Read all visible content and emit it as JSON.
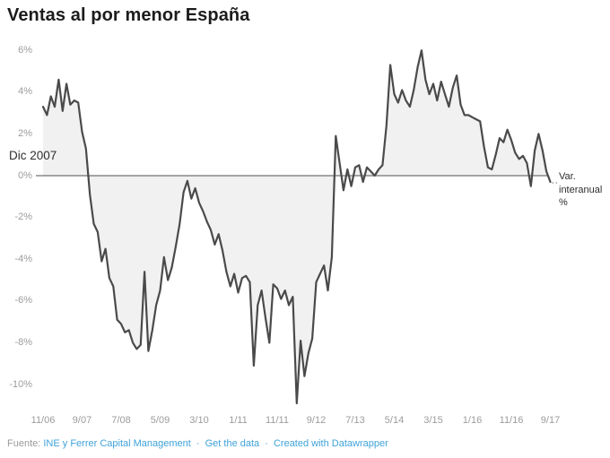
{
  "title": "Ventas al por menor España",
  "annotations": {
    "dic_2007": "Dic 2007",
    "series_label_lines": [
      "Var.",
      "interanual",
      "%"
    ]
  },
  "footer": {
    "prefix": "Fuente:",
    "separator": "·",
    "links": [
      "INE y Ferrer Capital Management",
      "Get the data",
      "Created with Datawrapper"
    ]
  },
  "colors": {
    "line": "#4a4a4a",
    "fill": "#f1f1f1",
    "zero_line": "#4f4f4f",
    "axis_text": "#9c9c9c",
    "annotation_text": "#2e2e2e",
    "title_text": "#1c1c1c",
    "link_blue": "#3ea2d9"
  },
  "chart_data": {
    "type": "area",
    "title": "Ventas al por menor España",
    "series_name": "Var. interanual %",
    "unit": "%",
    "frequency": "monthly",
    "start_month": "2006-11",
    "end_month": "2017-09",
    "values": [
      3.3,
      2.9,
      3.8,
      3.3,
      4.6,
      3.1,
      4.4,
      3.4,
      3.6,
      3.5,
      2.1,
      1.3,
      -0.9,
      -2.3,
      -2.7,
      -4.1,
      -3.5,
      -4.9,
      -5.3,
      -6.9,
      -7.1,
      -7.5,
      -7.4,
      -8.0,
      -8.3,
      -8.1,
      -4.6,
      -8.4,
      -7.4,
      -6.2,
      -5.5,
      -3.9,
      -5.0,
      -4.4,
      -3.4,
      -2.3,
      -0.8,
      -0.25,
      -1.1,
      -0.6,
      -1.3,
      -1.7,
      -2.2,
      -2.6,
      -3.3,
      -2.8,
      -3.6,
      -4.6,
      -5.3,
      -4.7,
      -5.6,
      -4.9,
      -4.8,
      -5.1,
      -9.1,
      -6.2,
      -5.5,
      -6.8,
      -8.0,
      -5.2,
      -5.4,
      -5.9,
      -5.5,
      -6.2,
      -5.8,
      -10.9,
      -7.9,
      -9.6,
      -8.5,
      -7.8,
      -5.1,
      -4.7,
      -4.3,
      -5.5,
      -3.9,
      1.9,
      0.6,
      -0.7,
      0.3,
      -0.5,
      0.4,
      0.5,
      -0.3,
      0.4,
      0.2,
      0.0,
      0.3,
      0.5,
      2.4,
      5.3,
      3.9,
      3.5,
      4.1,
      3.6,
      3.3,
      4.1,
      5.2,
      6.0,
      4.6,
      3.9,
      4.4,
      3.6,
      4.5,
      3.9,
      3.3,
      4.2,
      4.8,
      3.4,
      2.9,
      2.9,
      2.8,
      2.7,
      2.6,
      1.4,
      0.4,
      0.3,
      1.0,
      1.8,
      1.6,
      2.2,
      1.7,
      1.1,
      0.8,
      0.95,
      0.6,
      -0.5,
      1.2,
      2.0,
      1.2,
      0.2,
      -0.3
    ],
    "x_tick_labels": [
      "11/06",
      "9/07",
      "7/08",
      "5/09",
      "3/10",
      "1/11",
      "11/11",
      "9/12",
      "7/13",
      "5/14",
      "3/15",
      "1/16",
      "11/16",
      "9/17"
    ],
    "x_tick_month_interval": 10,
    "y_ticks": [
      6,
      4,
      2,
      0,
      -2,
      -4,
      -6,
      -8,
      -10
    ],
    "y_tick_labels": [
      "6%",
      "4%",
      "2%",
      "0%",
      "-2%",
      "-4%",
      "-6%",
      "-8%",
      "-10%"
    ],
    "ylim": [
      -11.2,
      6.5
    ],
    "grid": "zero-baseline-only",
    "legend": "none",
    "annotation_text": "Dic 2007",
    "end_label": "Var. interanual %"
  }
}
